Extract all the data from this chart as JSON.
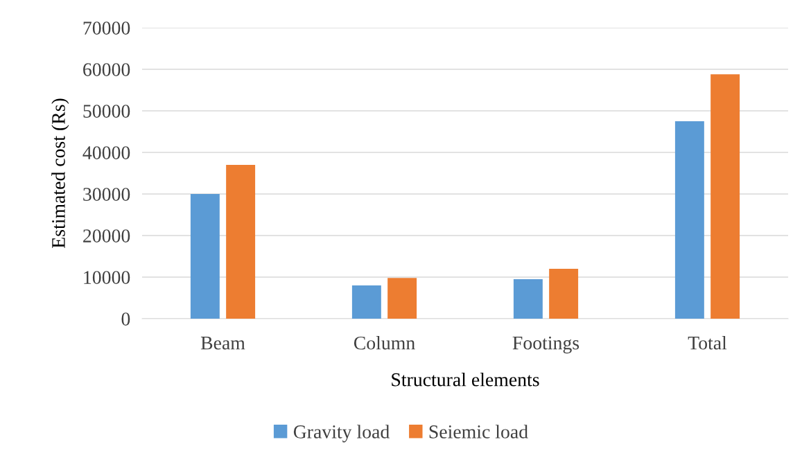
{
  "chart_data": {
    "type": "bar",
    "xlabel": "Structural elements",
    "ylabel": "Estimated cost (Rs)",
    "categories": [
      "Beam",
      "Column",
      "Footings",
      "Total"
    ],
    "series": [
      {
        "name": "Gravity load",
        "color": "#5b9bd5",
        "values": [
          30000,
          8000,
          9500,
          47500
        ]
      },
      {
        "name": "Seiemic load",
        "color": "#ed7d31",
        "values": [
          37000,
          9800,
          12000,
          58800
        ]
      }
    ],
    "ylim": [
      0,
      70000
    ],
    "yticks": [
      0,
      10000,
      20000,
      30000,
      40000,
      50000,
      60000,
      70000
    ],
    "grid": "y",
    "legend": "bottom"
  }
}
